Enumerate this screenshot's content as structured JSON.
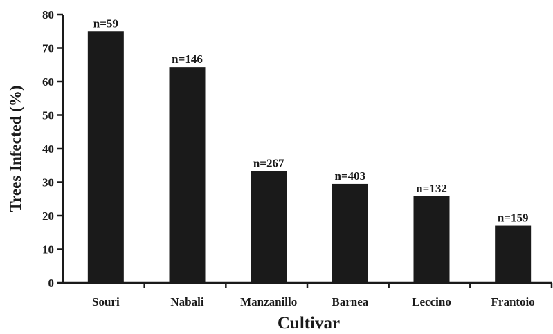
{
  "chart_data": {
    "type": "bar",
    "categories": [
      "Souri",
      "Nabali",
      "Manzanillo",
      "Barnea",
      "Leccino",
      "Frantoio"
    ],
    "values": [
      75,
      64.3,
      33.3,
      29.5,
      25.8,
      17
    ],
    "data_labels": [
      "n=59",
      "n=146",
      "n=267",
      "n=403",
      "n=132",
      "n=159"
    ],
    "xlabel": "Cultivar",
    "ylabel": "Trees Infected (%)",
    "ylim": [
      0,
      80
    ],
    "yticks": [
      0,
      10,
      20,
      30,
      40,
      50,
      60,
      70,
      80
    ],
    "grid": false,
    "bar_color": "#1a1a1a"
  }
}
